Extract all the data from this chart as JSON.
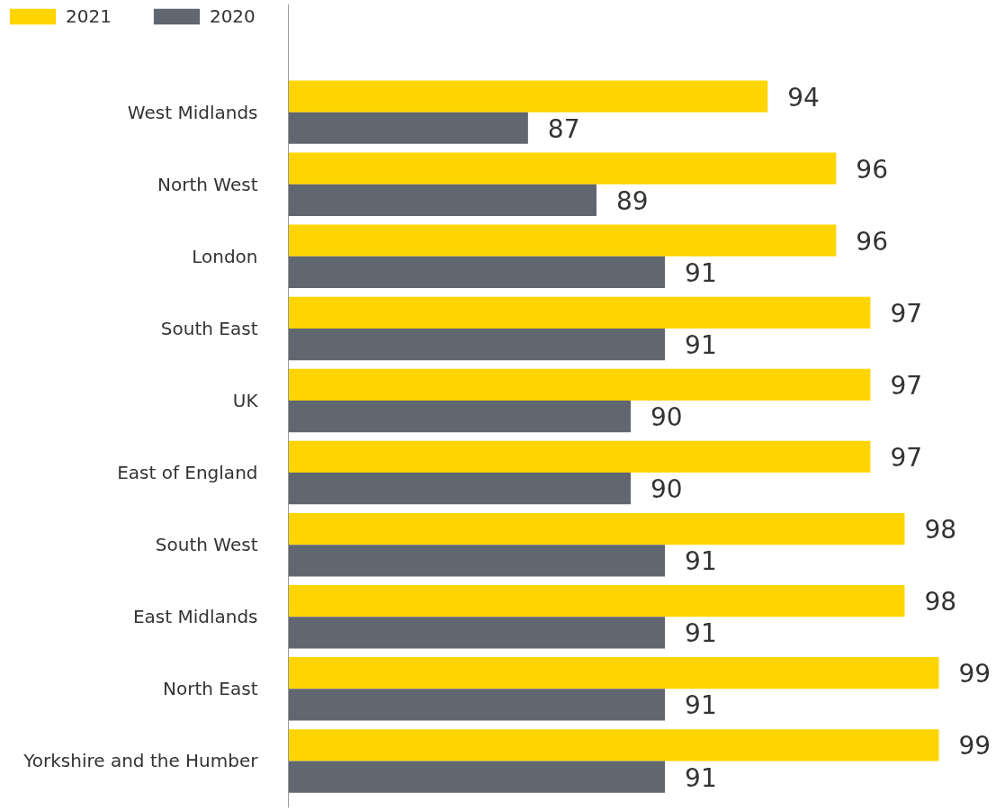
{
  "chart_data": {
    "type": "bar",
    "orientation": "horizontal",
    "categories": [
      "West Midlands",
      "North West",
      "London",
      "South East",
      "UK",
      "East of England",
      "South West",
      "East Midlands",
      "North East",
      "Yorkshire and the Humber"
    ],
    "series": [
      {
        "name": "2021",
        "color": "#ffd500",
        "values": [
          94,
          96,
          96,
          97,
          97,
          97,
          98,
          98,
          99,
          99
        ]
      },
      {
        "name": "2020",
        "color": "#606770",
        "values": [
          87,
          89,
          91,
          91,
          90,
          90,
          91,
          91,
          91,
          91
        ]
      }
    ],
    "xlim": [
      80,
      99
    ],
    "data_labels": true,
    "grid": false,
    "legend": "top left",
    "tick_labels": "y"
  }
}
